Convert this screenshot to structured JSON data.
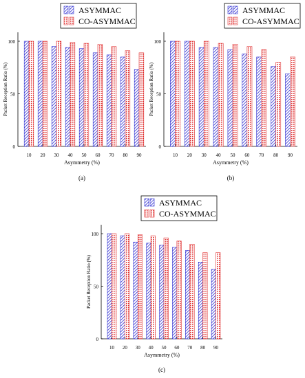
{
  "chart_data": [
    {
      "type": "bar",
      "panel_label": "(a)",
      "categories": [
        "10",
        "20",
        "30",
        "40",
        "50",
        "60",
        "70",
        "80",
        "90"
      ],
      "series": [
        {
          "name": "ASYMMAC",
          "values": [
            100,
            100,
            95,
            94,
            93,
            89,
            87,
            85,
            73
          ]
        },
        {
          "name": "CO-ASYMMAC",
          "values": [
            100,
            100,
            100,
            99,
            98,
            97,
            95,
            91,
            89
          ]
        }
      ],
      "xlabel": "Asymmetry (%)",
      "ylabel": "Packet Reception Ratio (%)",
      "ylim": [
        0,
        100
      ],
      "yticks": [
        0,
        50,
        100
      ],
      "legend": "top"
    },
    {
      "type": "bar",
      "panel_label": "(b)",
      "categories": [
        "10",
        "20",
        "30",
        "40",
        "50",
        "60",
        "70",
        "80",
        "90"
      ],
      "series": [
        {
          "name": "ASYMMAC",
          "values": [
            100,
            100,
            94,
            94,
            92,
            88,
            85,
            76,
            69
          ]
        },
        {
          "name": "CO-ASYMMAC",
          "values": [
            100,
            100,
            100,
            98,
            97,
            95,
            92,
            80,
            85
          ]
        }
      ],
      "xlabel": "Asymmetry (%)",
      "ylabel": "Packet Reception Ratio (%)",
      "ylim": [
        0,
        100
      ],
      "yticks": [
        0,
        50,
        100
      ],
      "legend": "top"
    },
    {
      "type": "bar",
      "panel_label": "(c)",
      "categories": [
        "10",
        "20",
        "30",
        "40",
        "50",
        "60",
        "70",
        "80",
        "90"
      ],
      "series": [
        {
          "name": "ASYMMAC",
          "values": [
            100,
            98,
            92,
            91,
            89,
            87,
            84,
            73,
            66
          ]
        },
        {
          "name": "CO-ASYMMAC",
          "values": [
            100,
            100,
            99,
            98,
            96,
            93,
            90,
            82,
            82
          ]
        }
      ],
      "xlabel": "Asymmetry (%)",
      "ylabel": "Packet Reception Ratio (%)",
      "ylim": [
        0,
        100
      ],
      "yticks": [
        0,
        50,
        100
      ],
      "legend": "top"
    }
  ],
  "colors": {
    "asymmac": "#2b2bd0",
    "co_asymmac": "#e03030",
    "axis": "#000000"
  }
}
